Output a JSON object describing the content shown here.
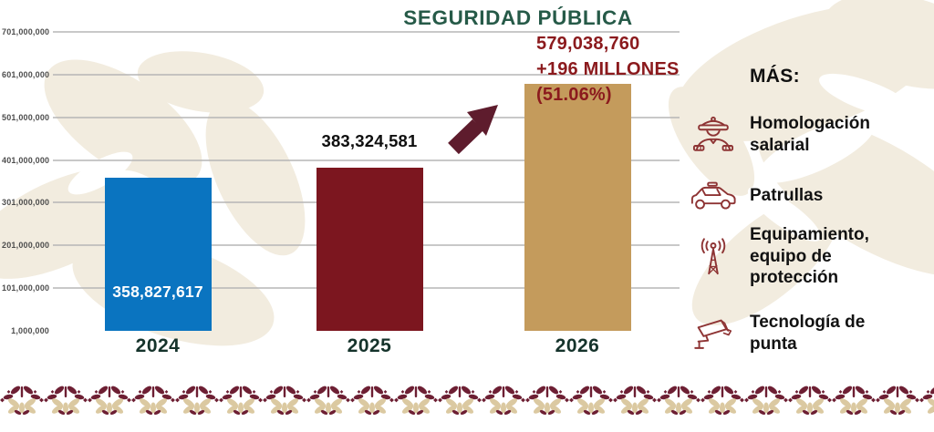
{
  "chart_data": {
    "type": "bar",
    "title": "SEGURIDAD PÚBLICA",
    "categories": [
      "2024",
      "2025",
      "2026"
    ],
    "values": [
      358827617,
      383324581,
      579038760
    ],
    "value_labels": [
      "358,827,617",
      "383,324,581",
      "579,038,760"
    ],
    "bar_colors": [
      "#0a74c0",
      "#7c161f",
      "#c49b5c"
    ],
    "y_ticks": [
      {
        "value": 701000000,
        "label": "701,000,000"
      },
      {
        "value": 601000000,
        "label": "601,000,000"
      },
      {
        "value": 501000000,
        "label": "501,000,000"
      },
      {
        "value": 401000000,
        "label": "401,000,000"
      },
      {
        "value": 301000000,
        "label": "301,000,000"
      },
      {
        "value": 201000000,
        "label": "201,000,000"
      },
      {
        "value": 101000000,
        "label": "101,000,000"
      },
      {
        "value": 1000000,
        "label": "1,000,000"
      }
    ],
    "ylim": [
      1000000,
      701000000
    ],
    "grid": true,
    "legend": "none",
    "xlabel": "",
    "ylabel": ""
  },
  "annotation": {
    "value": "579,038,760",
    "delta": "+196 MILLONES",
    "percent": "(51.06%)"
  },
  "side_panel": {
    "heading": "MÁS:",
    "items": [
      {
        "icon": "police-officer-icon",
        "label": "Homologación salarial"
      },
      {
        "icon": "patrol-car-icon",
        "label": "Patrullas"
      },
      {
        "icon": "antenna-icon",
        "label": "Equipamiento, equipo de protección"
      },
      {
        "icon": "cctv-camera-icon",
        "label": "Tecnología de punta"
      }
    ]
  },
  "colors": {
    "title_green": "#265a48",
    "axis_year_green": "#15332b",
    "annotation_red": "#8b1a1d",
    "arrow_maroon": "#5e1c2d",
    "icon_maroon": "#8e3434",
    "grid_gray": "#b5b5b5",
    "watermark_cream": "#f2ecdf",
    "band_maroon": "#6d1f33",
    "band_tan": "#dbc9a1",
    "bar_blue": "#0a74c0",
    "bar_maroon": "#7c161f",
    "bar_tan": "#c49b5c"
  }
}
